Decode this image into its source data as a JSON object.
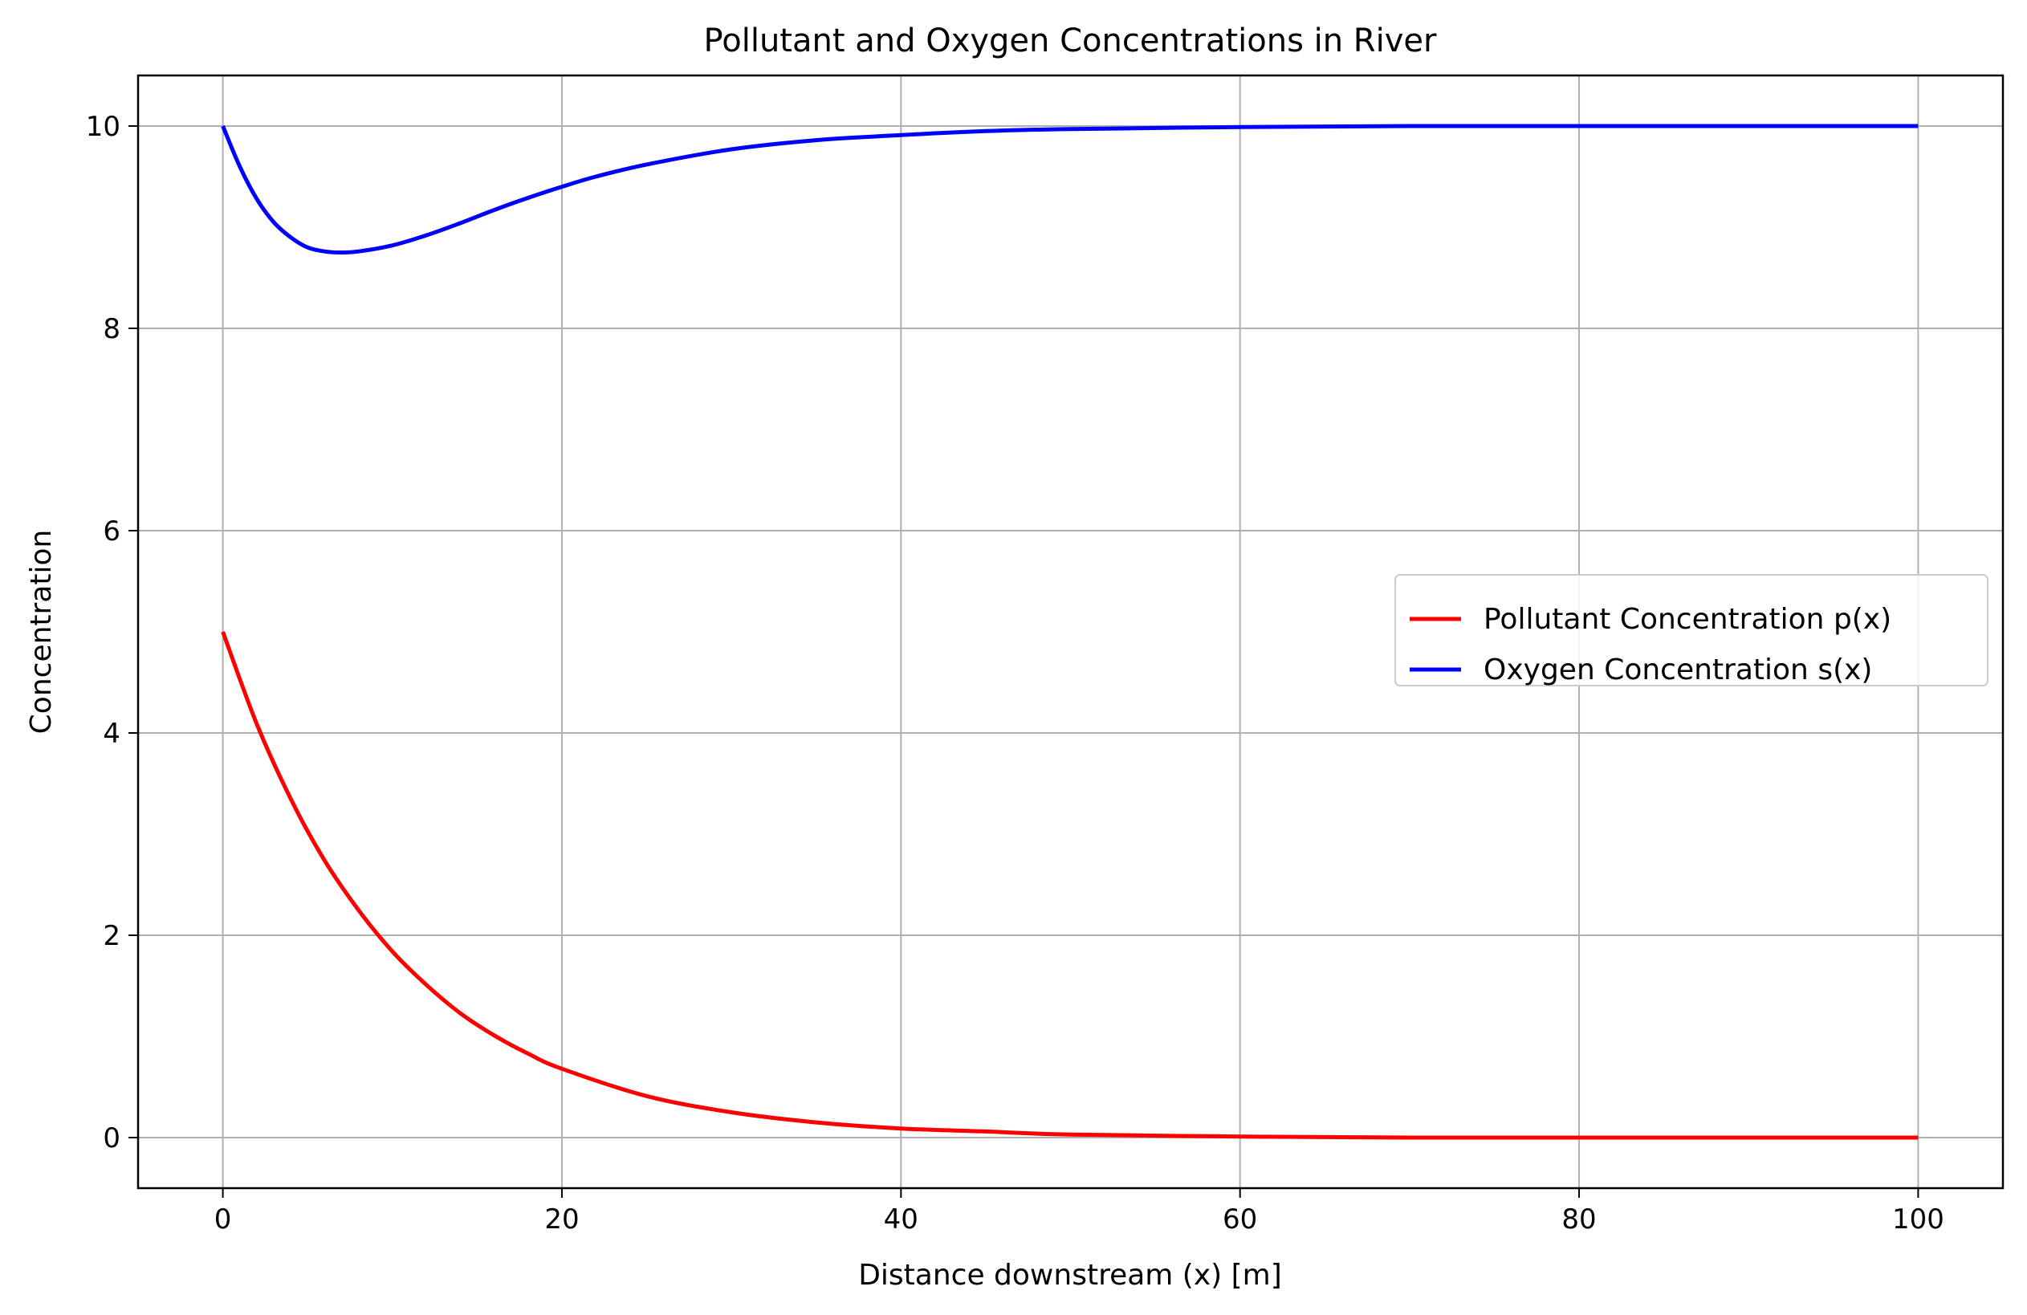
{
  "chart_data": {
    "type": "line",
    "title": "Pollutant and Oxygen Concentrations in River",
    "xlabel": "Distance downstream (x) [m]",
    "ylabel": "Concentration",
    "xlim": [
      -5,
      105
    ],
    "ylim": [
      -0.5,
      10.5
    ],
    "xticks": [
      0,
      20,
      40,
      60,
      80,
      100
    ],
    "yticks": [
      0,
      2,
      4,
      6,
      8,
      10
    ],
    "grid": true,
    "legend_position": "center-right",
    "series": [
      {
        "name": "Pollutant Concentration p(x)",
        "color": "#ff0000",
        "x": [
          0,
          2,
          4,
          6,
          8,
          10,
          12,
          14,
          16,
          18,
          20,
          25,
          30,
          35,
          40,
          45,
          50,
          60,
          70,
          80,
          90,
          100
        ],
        "y": [
          5.0,
          4.09,
          3.35,
          2.74,
          2.25,
          1.84,
          1.51,
          1.23,
          1.01,
          0.83,
          0.68,
          0.41,
          0.25,
          0.15,
          0.09,
          0.06,
          0.03,
          0.01,
          0.0,
          0.0,
          0.0,
          0.0
        ]
      },
      {
        "name": "Oxygen Concentration s(x)",
        "color": "#0000ff",
        "x": [
          0,
          1,
          2,
          3,
          4,
          5,
          6,
          7,
          8,
          10,
          12,
          14,
          16,
          18,
          20,
          22,
          25,
          30,
          35,
          40,
          45,
          50,
          60,
          70,
          80,
          90,
          100
        ],
        "y": [
          10.0,
          9.6,
          9.28,
          9.05,
          8.9,
          8.8,
          8.76,
          8.75,
          8.76,
          8.82,
          8.92,
          9.04,
          9.17,
          9.29,
          9.4,
          9.5,
          9.62,
          9.77,
          9.86,
          9.91,
          9.95,
          9.97,
          9.99,
          10.0,
          10.0,
          10.0,
          10.0
        ]
      }
    ]
  }
}
